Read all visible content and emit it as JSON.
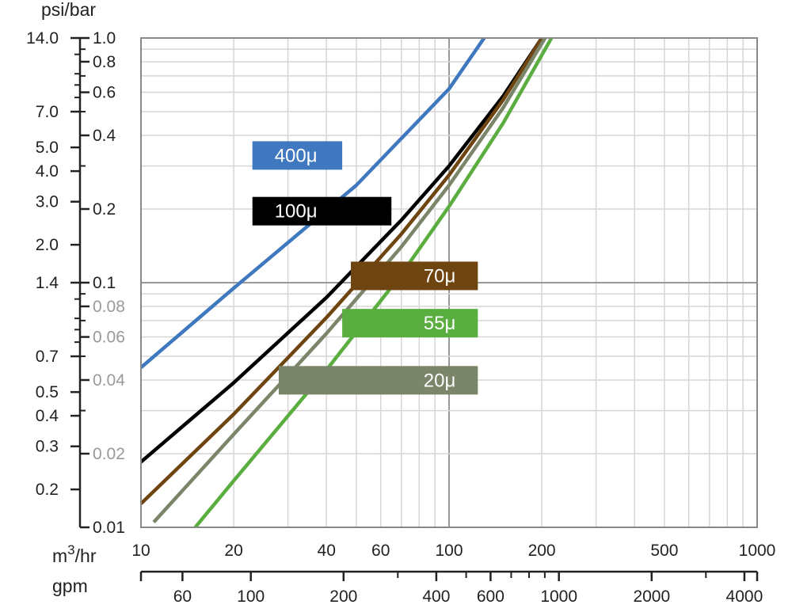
{
  "chart_data": {
    "type": "line",
    "x_scale": "log",
    "y_scale": "log",
    "xlim": [
      10,
      1000
    ],
    "ylim": [
      0.01,
      1.0
    ],
    "grid": true,
    "y_axis_title": "psi/bar",
    "x_axis_title_primary_prefix": "m",
    "x_axis_title_primary_sup": "3",
    "x_axis_title_primary_suffix": "/hr",
    "x_axis_title_secondary": "gpm",
    "bar_ticks": [
      {
        "value": 1.0,
        "label": "1.0",
        "light": false
      },
      {
        "value": 0.8,
        "label": "0.8",
        "light": false
      },
      {
        "value": 0.6,
        "label": "0.6",
        "light": false
      },
      {
        "value": 0.4,
        "label": "0.4",
        "light": false
      },
      {
        "value": 0.2,
        "label": "0.2",
        "light": false
      },
      {
        "value": 0.1,
        "label": "0.1",
        "light": false
      },
      {
        "value": 0.08,
        "label": "0.08",
        "light": true
      },
      {
        "value": 0.06,
        "label": "0.06",
        "light": true
      },
      {
        "value": 0.04,
        "label": "0.04",
        "light": true
      },
      {
        "value": 0.02,
        "label": "0.02",
        "light": true
      },
      {
        "value": 0.01,
        "label": "0.01",
        "light": false
      }
    ],
    "psi_ticks": [
      {
        "value": 14.0,
        "label": "14.0"
      },
      {
        "value": 7.0,
        "label": "7.0"
      },
      {
        "value": 5.0,
        "label": "5.0"
      },
      {
        "value": 4.0,
        "label": "4.0"
      },
      {
        "value": 3.0,
        "label": "3.0"
      },
      {
        "value": 2.0,
        "label": "2.0"
      },
      {
        "value": 1.4,
        "label": "1.4"
      },
      {
        "value": 0.7,
        "label": "0.7"
      },
      {
        "value": 0.5,
        "label": "0.5"
      },
      {
        "value": 0.4,
        "label": "0.4"
      },
      {
        "value": 0.3,
        "label": "0.3"
      },
      {
        "value": 0.2,
        "label": "0.2"
      }
    ],
    "m3hr_ticks": [
      {
        "value": 10,
        "label": "10"
      },
      {
        "value": 20,
        "label": "20"
      },
      {
        "value": 40,
        "label": "40"
      },
      {
        "value": 60,
        "label": "60"
      },
      {
        "value": 100,
        "label": "100"
      },
      {
        "value": 200,
        "label": "200"
      },
      {
        "value": 500,
        "label": "500"
      },
      {
        "value": 1000,
        "label": "1000"
      }
    ],
    "gpm_ticks": [
      {
        "value": 60,
        "label": "60"
      },
      {
        "value": 100,
        "label": "100"
      },
      {
        "value": 200,
        "label": "200"
      },
      {
        "value": 400,
        "label": "400"
      },
      {
        "value": 600,
        "label": "600"
      },
      {
        "value": 1000,
        "label": "1000"
      },
      {
        "value": 2000,
        "label": "2000"
      },
      {
        "value": 4000,
        "label": "4000"
      }
    ],
    "gpm_minor_ticks": [
      300,
      500,
      700,
      800,
      900,
      3000
    ],
    "series": [
      {
        "name": "400μ",
        "color": "#3f78be",
        "points": [
          [
            10,
            0.045
          ],
          [
            20,
            0.095
          ],
          [
            50,
            0.25
          ],
          [
            100,
            0.62
          ],
          [
            130,
            1.0
          ]
        ]
      },
      {
        "name": "100μ",
        "color": "#000000",
        "points": [
          [
            10,
            0.0185
          ],
          [
            20,
            0.039
          ],
          [
            40,
            0.087
          ],
          [
            70,
            0.18
          ],
          [
            100,
            0.3
          ],
          [
            150,
            0.58
          ],
          [
            200,
            1.0
          ]
        ]
      },
      {
        "name": "70μ",
        "color": "#6e4510",
        "points": [
          [
            10,
            0.0125
          ],
          [
            20,
            0.029
          ],
          [
            40,
            0.072
          ],
          [
            70,
            0.158
          ],
          [
            100,
            0.275
          ],
          [
            150,
            0.56
          ],
          [
            200,
            1.0
          ]
        ]
      },
      {
        "name": "20μ",
        "color": "#7a856a",
        "points": [
          [
            11,
            0.0105
          ],
          [
            20,
            0.024
          ],
          [
            40,
            0.062
          ],
          [
            70,
            0.14
          ],
          [
            100,
            0.25
          ],
          [
            150,
            0.52
          ],
          [
            205,
            1.0
          ]
        ]
      },
      {
        "name": "55μ",
        "color": "#5aad3f",
        "points": [
          [
            15,
            0.01
          ],
          [
            20,
            0.0155
          ],
          [
            40,
            0.044
          ],
          [
            70,
            0.108
          ],
          [
            100,
            0.205
          ],
          [
            150,
            0.45
          ],
          [
            215,
            1.0
          ]
        ]
      }
    ],
    "tags": [
      {
        "series": "400μ",
        "text": "400μ",
        "color": "#3f78be",
        "y": 0.331,
        "x_from": 23,
        "x_to": 45,
        "align": "left"
      },
      {
        "series": "100μ",
        "text": "100μ",
        "color": "#000000",
        "y": 0.196,
        "x_from": 23,
        "x_to": 65,
        "align": "left"
      },
      {
        "series": "70μ",
        "text": "70μ",
        "color": "#6e4510",
        "y": 0.1066,
        "x_from": 48,
        "x_to": 124,
        "align": "right"
      },
      {
        "series": "55μ",
        "text": "55μ",
        "color": "#5aad3f",
        "y": 0.0683,
        "x_from": 45,
        "x_to": 124,
        "align": "right"
      },
      {
        "series": "20μ",
        "text": "20μ",
        "color": "#7a856a",
        "y": 0.0399,
        "x_from": 28,
        "x_to": 124,
        "align": "right"
      }
    ]
  }
}
